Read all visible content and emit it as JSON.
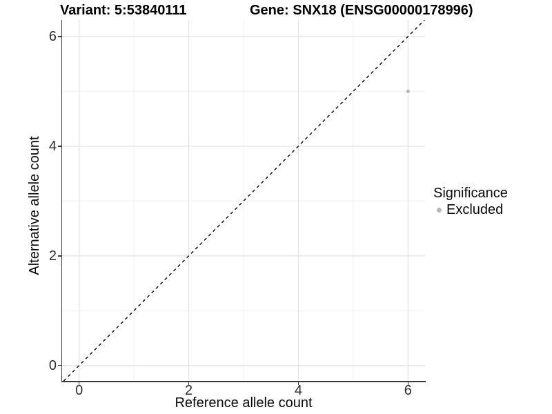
{
  "chart_data": {
    "type": "scatter",
    "title_left": "Variant: 5:53840111",
    "title_right": "Gene: SNX18 (ENSG00000178996)",
    "xlabel": "Reference allele count",
    "ylabel": "Alternative allele count",
    "xlim": [
      -0.31,
      6.31
    ],
    "ylim": [
      -0.28,
      6.3
    ],
    "x_ticks": {
      "major": [
        0,
        2,
        4,
        6
      ],
      "minor": [
        1,
        3,
        5
      ]
    },
    "y_ticks": {
      "major": [
        0,
        2,
        4,
        6
      ],
      "minor": [
        1,
        3,
        5
      ]
    },
    "grid": true,
    "series": [
      {
        "name": "Excluded",
        "color": "#b5b5b5",
        "points": [
          {
            "x": 6,
            "y": 5
          }
        ]
      }
    ],
    "reference_line": {
      "type": "identity",
      "slope": 1,
      "intercept": 0,
      "style": "dashed",
      "color": "#000000"
    },
    "legend": {
      "title": "Significance",
      "position": "right",
      "items": [
        {
          "label": "Excluded",
          "color": "#b5b5b5"
        }
      ]
    }
  },
  "style": {
    "background": "#ffffff",
    "major_grid_color": "#e2e2e2",
    "minor_grid_color": "#efefef",
    "axis_line_color": "#3a3a3a",
    "point_radius": 2.6,
    "dash_pattern": "4.5 4.5"
  }
}
